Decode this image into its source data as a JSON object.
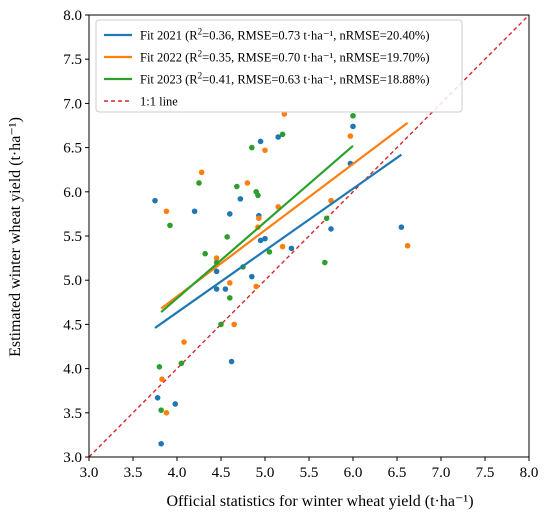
{
  "chart_data": {
    "type": "scatter",
    "xlabel": "Official statistics for winter wheat yield (t·ha⁻¹)",
    "ylabel": "Estimated winter wheat yield (t·ha⁻¹)",
    "xlim": [
      3.0,
      8.0
    ],
    "ylim": [
      3.0,
      8.0
    ],
    "x_ticks": [
      "3.0",
      "3.5",
      "4.0",
      "4.5",
      "5.0",
      "5.5",
      "6.0",
      "6.5",
      "7.0",
      "7.5",
      "8.0"
    ],
    "y_ticks": [
      "3.0",
      "3.5",
      "4.0",
      "4.5",
      "5.0",
      "5.5",
      "6.0",
      "6.5",
      "7.0",
      "7.5",
      "8.0"
    ],
    "grid": false,
    "legend_position": "top-left",
    "colors": {
      "2021": "#1f77b4",
      "2022": "#ff7f0e",
      "2023": "#2ca02c",
      "oneone": "#d62728"
    },
    "legend": [
      {
        "key": "2021",
        "prefix": "Fit 2021 (R",
        "sup": "2",
        "suffix": "=0.36, RMSE=0.73 t·ha⁻¹, nRMSE=20.40%)"
      },
      {
        "key": "2022",
        "prefix": "Fit 2022 (R",
        "sup": "2",
        "suffix": "=0.35, RMSE=0.70 t·ha⁻¹, nRMSE=19.70%)"
      },
      {
        "key": "2023",
        "prefix": "Fit 2023 (R",
        "sup": "2",
        "suffix": "=0.41, RMSE=0.63 t·ha⁻¹, nRMSE=18.88%)"
      },
      {
        "key": "oneone",
        "prefix": "1:1 line",
        "sup": "",
        "suffix": ""
      }
    ],
    "fit_lines": [
      {
        "year": "2021",
        "x": [
          3.75,
          6.55
        ],
        "y": [
          4.46,
          6.42
        ]
      },
      {
        "year": "2022",
        "x": [
          3.82,
          6.62
        ],
        "y": [
          4.68,
          6.78
        ]
      },
      {
        "year": "2023",
        "x": [
          3.82,
          6.0
        ],
        "y": [
          4.64,
          6.52
        ]
      }
    ],
    "one_to_one": {
      "x": [
        3.0,
        8.0
      ],
      "y": [
        3.0,
        8.0
      ]
    },
    "series": [
      {
        "year": "2021",
        "points": [
          [
            3.75,
            5.9
          ],
          [
            3.78,
            3.67
          ],
          [
            3.82,
            3.15
          ],
          [
            3.98,
            3.6
          ],
          [
            4.2,
            5.78
          ],
          [
            4.45,
            4.9
          ],
          [
            4.45,
            5.1
          ],
          [
            4.55,
            4.9
          ],
          [
            4.6,
            5.75
          ],
          [
            4.62,
            4.08
          ],
          [
            4.72,
            5.92
          ],
          [
            4.85,
            5.04
          ],
          [
            4.93,
            5.73
          ],
          [
            4.95,
            5.45
          ],
          [
            4.95,
            6.57
          ],
          [
            5.0,
            5.47
          ],
          [
            5.15,
            6.62
          ],
          [
            5.3,
            5.36
          ],
          [
            5.75,
            5.58
          ],
          [
            5.97,
            6.32
          ],
          [
            6.0,
            6.74
          ],
          [
            6.55,
            5.6
          ]
        ]
      },
      {
        "year": "2022",
        "points": [
          [
            3.83,
            3.88
          ],
          [
            3.88,
            5.78
          ],
          [
            3.88,
            3.5
          ],
          [
            4.08,
            4.3
          ],
          [
            4.28,
            6.22
          ],
          [
            4.45,
            5.25
          ],
          [
            4.6,
            4.97
          ],
          [
            4.65,
            4.5
          ],
          [
            4.8,
            6.1
          ],
          [
            4.9,
            4.93
          ],
          [
            4.92,
            5.6
          ],
          [
            4.93,
            5.7
          ],
          [
            5.0,
            6.47
          ],
          [
            5.15,
            5.83
          ],
          [
            5.2,
            5.38
          ],
          [
            5.22,
            6.88
          ],
          [
            5.75,
            5.9
          ],
          [
            5.97,
            6.63
          ],
          [
            6.62,
            5.39
          ]
        ]
      },
      {
        "year": "2022b",
        "points": []
      },
      {
        "year": "2023",
        "points": [
          [
            3.8,
            4.02
          ],
          [
            3.82,
            3.53
          ],
          [
            3.92,
            5.62
          ],
          [
            4.05,
            4.06
          ],
          [
            4.25,
            6.1
          ],
          [
            4.32,
            5.3
          ],
          [
            4.45,
            5.2
          ],
          [
            4.5,
            4.5
          ],
          [
            4.57,
            5.49
          ],
          [
            4.6,
            4.8
          ],
          [
            4.68,
            6.06
          ],
          [
            4.75,
            5.15
          ],
          [
            4.85,
            6.5
          ],
          [
            4.9,
            6.0
          ],
          [
            4.92,
            5.96
          ],
          [
            5.05,
            5.32
          ],
          [
            5.2,
            6.65
          ],
          [
            5.68,
            5.2
          ],
          [
            5.7,
            5.7
          ],
          [
            6.0,
            6.86
          ]
        ]
      }
    ]
  }
}
